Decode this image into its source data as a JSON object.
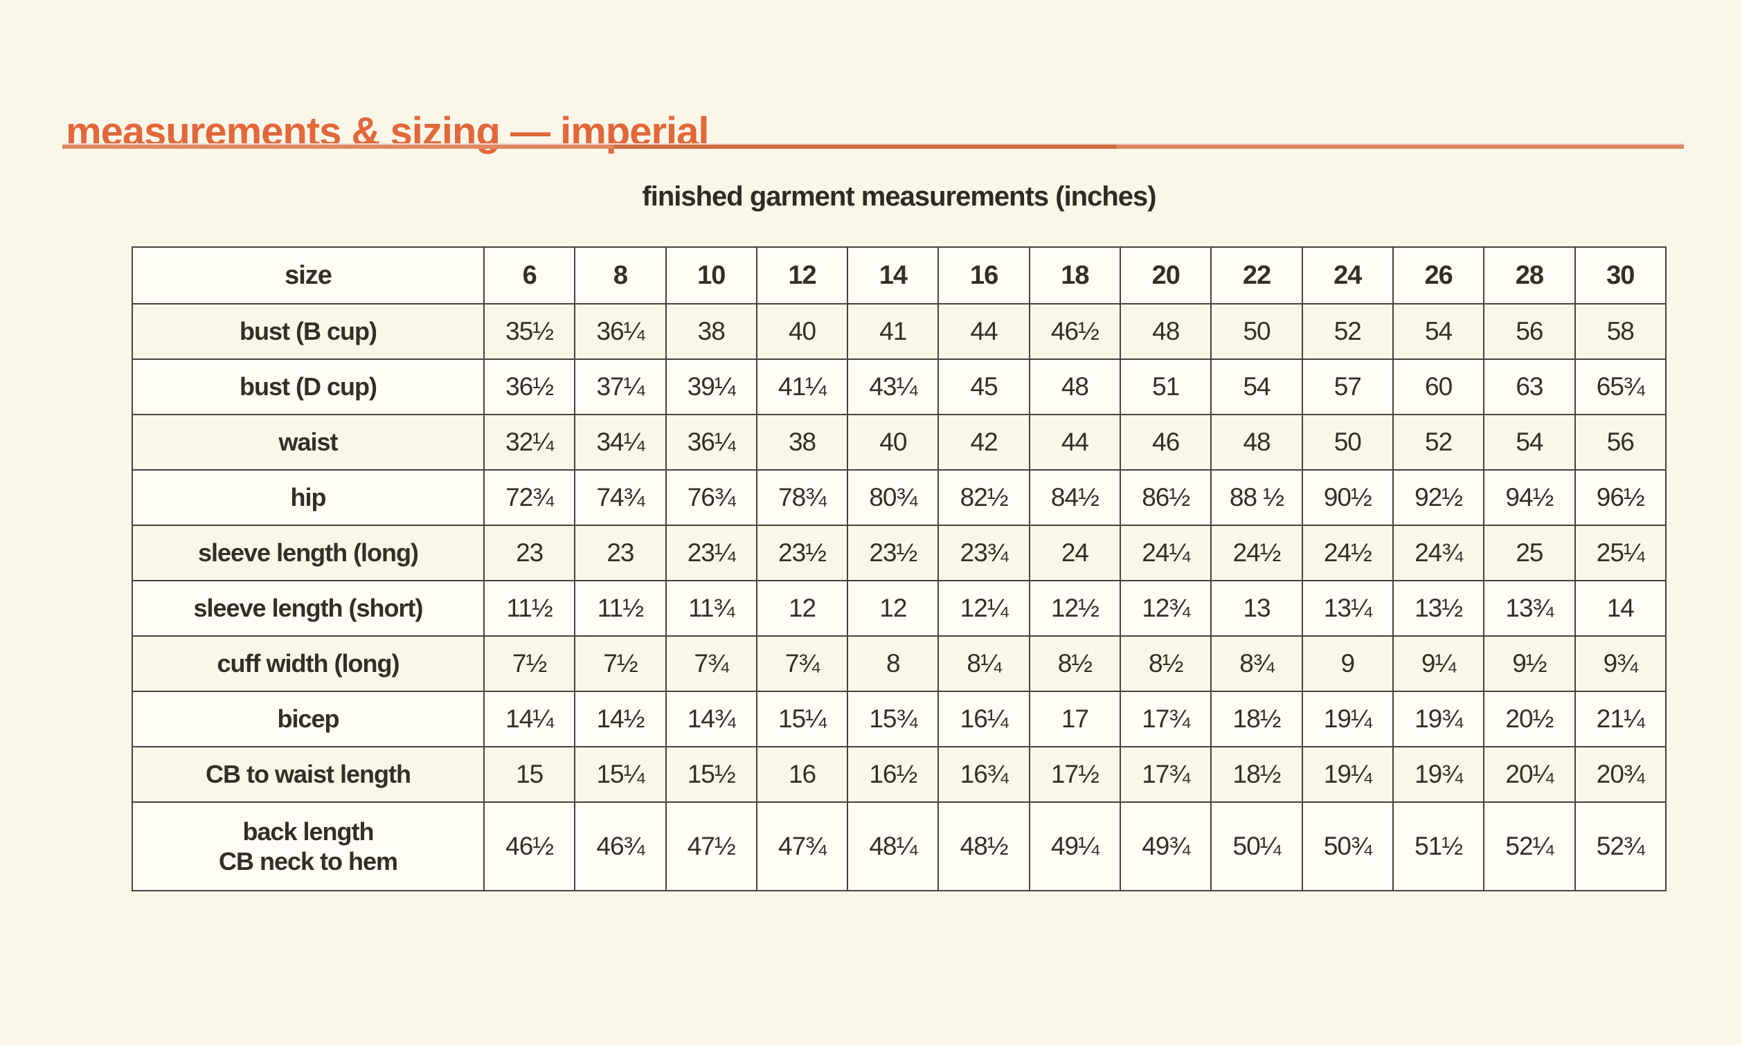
{
  "page": {
    "title": "measurements & sizing — imperial",
    "subtitle": "finished garment measurements (inches)"
  },
  "colors": {
    "accent_orange": "#e2673a",
    "rule_light_orange": "#dd8862",
    "rule_dark_orange": "#cf6a41",
    "page_background": "#faf7e9",
    "row_white": "#fffdf6",
    "row_cream": "#faf7e9",
    "border_dark": "#45413c",
    "text_dark": "#332e26"
  },
  "table": {
    "corner_label": "size",
    "sizes": [
      "6",
      "8",
      "10",
      "12",
      "14",
      "16",
      "18",
      "20",
      "22",
      "24",
      "26",
      "28",
      "30"
    ],
    "rows": [
      {
        "label": "bust (B cup)",
        "values": [
          "35½",
          "36¼",
          "38",
          "40",
          "41",
          "44",
          "46½",
          "48",
          "50",
          "52",
          "54",
          "56",
          "58"
        ]
      },
      {
        "label": "bust (D cup)",
        "values": [
          "36½",
          "37¼",
          "39¼",
          "41¼",
          "43¼",
          "45",
          "48",
          "51",
          "54",
          "57",
          "60",
          "63",
          "65¾"
        ]
      },
      {
        "label": "waist",
        "values": [
          "32¼",
          "34¼",
          "36¼",
          "38",
          "40",
          "42",
          "44",
          "46",
          "48",
          "50",
          "52",
          "54",
          "56"
        ]
      },
      {
        "label": "hip",
        "values": [
          "72¾",
          "74¾",
          "76¾",
          "78¾",
          "80¾",
          "82½",
          "84½",
          "86½",
          "88 ½",
          "90½",
          "92½",
          "94½",
          "96½"
        ]
      },
      {
        "label": "sleeve length (long)",
        "values": [
          "23",
          "23",
          "23¼",
          "23½",
          "23½",
          "23¾",
          "24",
          "24¼",
          "24½",
          "24½",
          "24¾",
          "25",
          "25¼"
        ]
      },
      {
        "label": "sleeve length (short)",
        "values": [
          "11½",
          "11½",
          "11¾",
          "12",
          "12",
          "12¼",
          "12½",
          "12¾",
          "13",
          "13¼",
          "13½",
          "13¾",
          "14"
        ]
      },
      {
        "label": "cuff width (long)",
        "values": [
          "7½",
          "7½",
          "7¾",
          "7¾",
          "8",
          "8¼",
          "8½",
          "8½",
          "8¾",
          "9",
          "9¼",
          "9½",
          "9¾"
        ]
      },
      {
        "label": "bicep",
        "values": [
          "14¼",
          "14½",
          "14¾",
          "15¼",
          "15¾",
          "16¼",
          "17",
          "17¾",
          "18½",
          "19¼",
          "19¾",
          "20½",
          "21¼"
        ]
      },
      {
        "label": "CB to waist length",
        "values": [
          "15",
          "15¼",
          "15½",
          "16",
          "16½",
          "16¾",
          "17½",
          "17¾",
          "18½",
          "19¼",
          "19¾",
          "20¼",
          "20¾"
        ]
      },
      {
        "label": "back length\nCB neck to hem",
        "values": [
          "46½",
          "46¾",
          "47½",
          "47¾",
          "48¼",
          "48½",
          "49¼",
          "49¾",
          "50¼",
          "50¾",
          "51½",
          "52¼",
          "52¾"
        ]
      }
    ]
  }
}
